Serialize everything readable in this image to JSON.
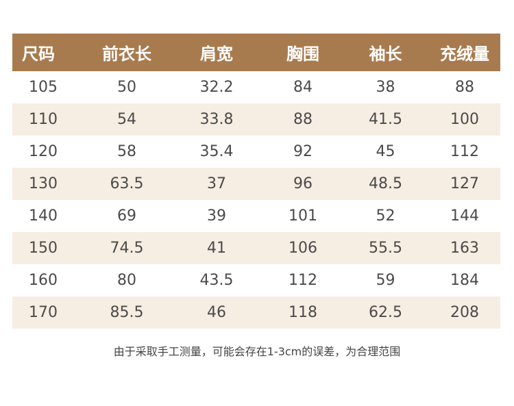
{
  "table": {
    "headers": [
      "尺码",
      "前衣长",
      "肩宽",
      "胸围",
      "袖长",
      "充绒量"
    ],
    "rows": [
      [
        "105",
        "50",
        "32.2",
        "84",
        "38",
        "88"
      ],
      [
        "110",
        "54",
        "33.8",
        "88",
        "41.5",
        "100"
      ],
      [
        "120",
        "58",
        "35.4",
        "92",
        "45",
        "112"
      ],
      [
        "130",
        "63.5",
        "37",
        "96",
        "48.5",
        "127"
      ],
      [
        "140",
        "69",
        "39",
        "101",
        "52",
        "144"
      ],
      [
        "150",
        "74.5",
        "41",
        "106",
        "55.5",
        "163"
      ],
      [
        "160",
        "80",
        "43.5",
        "112",
        "59",
        "184"
      ],
      [
        "170",
        "85.5",
        "46",
        "118",
        "62.5",
        "208"
      ]
    ]
  },
  "note": "由于采取手工测量，可能会存在1-3cm的误差，为合理范围",
  "colors": {
    "header_background": "#a87b4f",
    "header_text": "#ffffff",
    "stripe_row": "#f6ede3",
    "body_text": "#4a4a4a"
  }
}
